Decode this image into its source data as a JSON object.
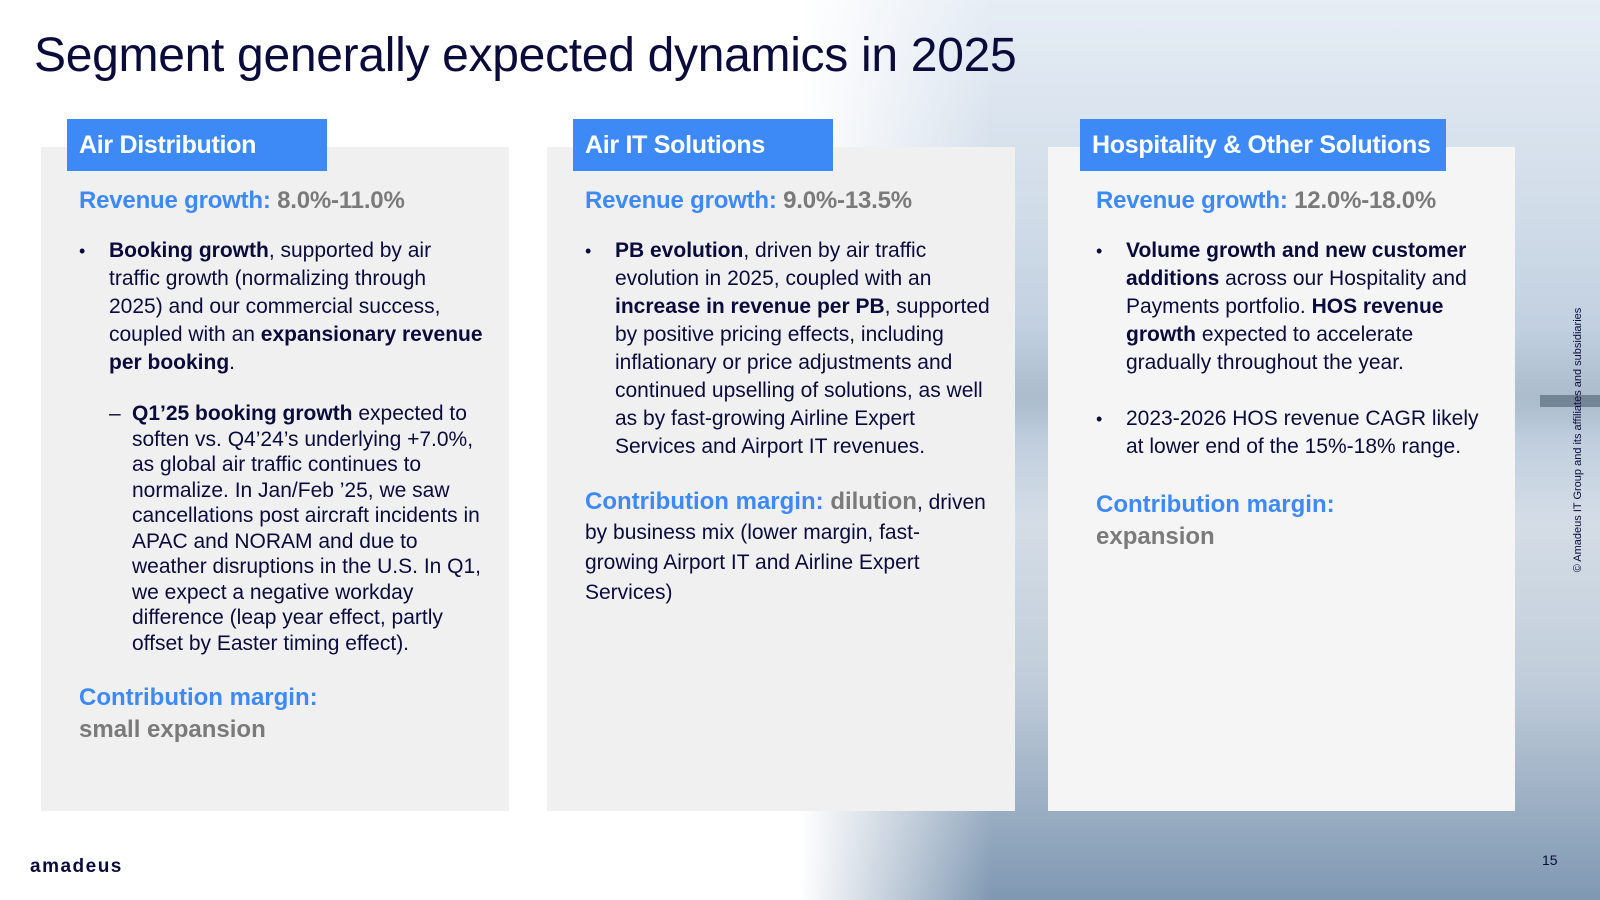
{
  "title": "Segment generally expected dynamics in 2025",
  "colors": {
    "accent": "#3d8af7",
    "card_bg": "#f0f0f1",
    "text": "#0b0b3b",
    "muted": "#7a7a7a"
  },
  "cards": [
    {
      "tag": "Air Distribution",
      "revenue_label": "Revenue growth:",
      "revenue_value": "8.0%-11.0%",
      "bullet1": {
        "b1": "Booking growth",
        "t1": ", supported by air traffic growth (normalizing through 2025) and our commercial success, coupled with an ",
        "b2": "expansionary revenue per booking",
        "t2": "."
      },
      "sub": {
        "dash": "–",
        "b1": "Q1’25 booking growth",
        "t1": " expected to soften vs. Q4’24’s underlying +7.0%, as global air traffic continues to normalize. In Jan/Feb ’25,  we saw cancellations post aircraft incidents in APAC and NORAM and due to weather disruptions in the U.S. In Q1, we expect a negative workday difference (leap year effect, partly offset by Easter timing effect)."
      },
      "cm_label": "Contribution margin:",
      "cm_value": "small expansion"
    },
    {
      "tag": "Air IT Solutions",
      "revenue_label": "Revenue growth:",
      "revenue_value": "9.0%-13.5%",
      "bullet1": {
        "b1": "PB evolution",
        "t1": ", driven by air traffic evolution in 2025, coupled with an ",
        "b2": "increase in revenue per PB",
        "t2": ", supported by positive pricing effects, including inflationary or price adjustments and continued upselling of solutions, as well as by fast-growing Airline Expert Services and Airport IT revenues."
      },
      "cm_label": "Contribution margin:",
      "cm_value": "dilution",
      "cm_text": ", driven by business mix (lower margin, fast-growing Airport IT and Airline Expert Services)"
    },
    {
      "tag": "Hospitality & Other Solutions",
      "revenue_label": "Revenue growth:",
      "revenue_value": "12.0%-18.0%",
      "bullet1": {
        "b1": "Volume growth and new customer additions",
        "t1": " across our Hospitality and Payments portfolio. ",
        "b2": "HOS revenue growth",
        "t2": " expected to accelerate gradually throughout the year."
      },
      "bullet2": "2023-2026 HOS revenue CAGR likely at lower end of the 15%-18% range.",
      "cm_label": "Contribution margin:",
      "cm_value": "expansion"
    }
  ],
  "footer": {
    "logo": "amadeus",
    "page": "15",
    "copyright": "© Amadeus IT Group and its affiliates and subsidiaries"
  }
}
